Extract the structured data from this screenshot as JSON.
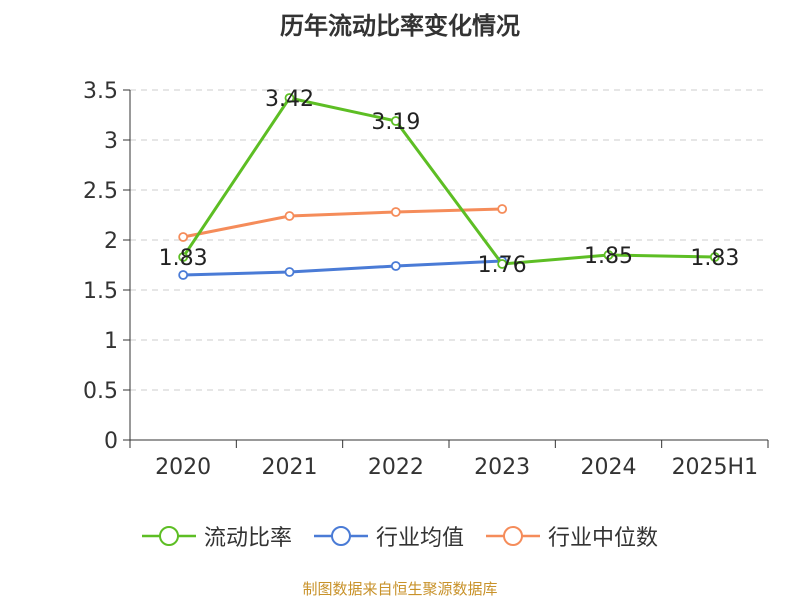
{
  "title": "历年流动比率变化情况",
  "source_text": "制图数据来自恒生聚源数据库",
  "chart_data": {
    "type": "line",
    "title": "历年流动比率变化情况",
    "categories": [
      "2020",
      "2021",
      "2022",
      "2023",
      "2024",
      "2025H1"
    ],
    "ylim": [
      0,
      3.5
    ],
    "yticks": [
      0,
      0.5,
      1,
      1.5,
      2,
      2.5,
      3,
      3.5
    ],
    "ytick_labels": [
      "0",
      "0.5",
      "1",
      "1.5",
      "2",
      "2.5",
      "3",
      "3.5"
    ],
    "grid": true,
    "legend_position": "bottom",
    "series": [
      {
        "name": "流动比率",
        "color": "#5dbe24",
        "values": [
          1.83,
          3.42,
          3.19,
          1.76,
          1.85,
          1.83
        ],
        "labels": [
          "1.83",
          "3.42",
          "3.19",
          "1.76",
          "1.85",
          "1.83"
        ]
      },
      {
        "name": "行业均值",
        "color": "#4a7bd6",
        "values": [
          1.65,
          1.68,
          1.74,
          1.79,
          null,
          null
        ]
      },
      {
        "name": "行业中位数",
        "color": "#f58c5a",
        "values": [
          2.03,
          2.24,
          2.28,
          2.31,
          null,
          null
        ]
      }
    ]
  }
}
